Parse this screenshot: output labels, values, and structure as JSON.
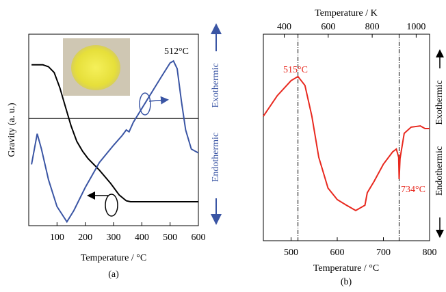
{
  "chart_data": [
    {
      "type": "line",
      "x_label": "Temperature / °C",
      "y_label": "Gravity (a. u.)",
      "y2_label_bottom": "Endothermic",
      "y2_label_top": "Exothermic",
      "annotations": [
        "512°C"
      ],
      "caption": "(a)",
      "xlim": [
        0,
        600
      ],
      "xticks": [
        100,
        200,
        300,
        400,
        500,
        600
      ],
      "ylim": [
        0,
        100
      ],
      "hlines": [
        56
      ],
      "series": [
        {
          "color": "#000000",
          "x": [
            10,
            50,
            70,
            90,
            110,
            130,
            150,
            170,
            190,
            210,
            250,
            290,
            320,
            345,
            360,
            600
          ],
          "values": [
            84,
            84,
            83,
            80,
            72,
            62,
            52,
            44,
            39,
            35,
            29,
            22,
            16,
            13,
            12.5,
            12.5
          ]
        },
        {
          "color": "#3a55a4",
          "x": [
            10,
            30,
            45,
            70,
            100,
            135,
            160,
            200,
            250,
            300,
            330,
            345,
            355,
            370,
            420,
            470,
            500,
            512,
            525,
            540,
            555,
            575,
            600
          ],
          "values": [
            32,
            48,
            40,
            24,
            10,
            2,
            8,
            20,
            33,
            42,
            47,
            50,
            49,
            54,
            66,
            78,
            85,
            86,
            82,
            65,
            50,
            40,
            38
          ]
        }
      ]
    },
    {
      "type": "line",
      "x_label": "Temperature / °C",
      "x2_label": "Temperature / K",
      "y2_label_bottom": "Endothermic",
      "y2_label_top": "Exothermic",
      "annotations": [
        "515°C",
        "734°C"
      ],
      "caption": "(b)",
      "xlim": [
        440,
        800
      ],
      "xticks": [
        500,
        600,
        700,
        800
      ],
      "x2lim": [
        305,
        1061
      ],
      "x2ticks": [
        400,
        600,
        800,
        1000
      ],
      "ylim": [
        0,
        100
      ],
      "vlines": [
        515,
        734
      ],
      "series": [
        {
          "color": "#e8281e",
          "x": [
            440,
            470,
            500,
            515,
            530,
            545,
            560,
            580,
            600,
            620,
            640,
            660,
            665,
            680,
            700,
            720,
            728,
            733,
            734,
            736,
            745,
            760,
            780,
            790,
            800
          ],
          "values": [
            60.3,
            70.2,
            77.5,
            79.5,
            75.2,
            60.3,
            40.4,
            25.5,
            19.9,
            17.2,
            14.6,
            17.2,
            23.2,
            28.8,
            37.1,
            43.0,
            44.4,
            40.4,
            29.8,
            39.7,
            52.0,
            55.0,
            55.6,
            54.3,
            54.3
          ]
        }
      ]
    }
  ]
}
